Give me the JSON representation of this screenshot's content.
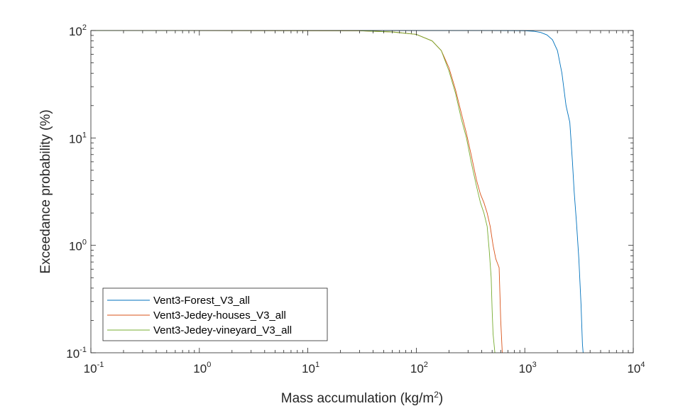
{
  "chart_data": {
    "type": "line",
    "title": "",
    "xlabel": {
      "main": "Mass accumulation (kg/m",
      "sup": "2",
      "end": ")"
    },
    "ylabel": "Exceedance probability (%)",
    "xscale": "log",
    "yscale": "log",
    "xlim": [
      0.1,
      10000
    ],
    "ylim": [
      0.1,
      100
    ],
    "grid": false,
    "legend_position": "bottom-left",
    "x_ticks": [
      {
        "value": 0.1,
        "base": "10",
        "exp": "-1"
      },
      {
        "value": 1,
        "base": "10",
        "exp": "0"
      },
      {
        "value": 10,
        "base": "10",
        "exp": "1"
      },
      {
        "value": 100,
        "base": "10",
        "exp": "2"
      },
      {
        "value": 1000,
        "base": "10",
        "exp": "3"
      },
      {
        "value": 10000,
        "base": "10",
        "exp": "4"
      }
    ],
    "y_ticks": [
      {
        "value": 0.1,
        "base": "10",
        "exp": "-1"
      },
      {
        "value": 1,
        "base": "10",
        "exp": "0"
      },
      {
        "value": 10,
        "base": "10",
        "exp": "1"
      },
      {
        "value": 100,
        "base": "10",
        "exp": "2"
      }
    ],
    "series": [
      {
        "name": "Vent3-Forest_V3_all",
        "color": "#0072BD",
        "x": [
          0.1,
          100,
          500,
          1000,
          1200,
          1400,
          1600,
          1800,
          2000,
          2200,
          2400,
          2600,
          2750,
          2850,
          3000,
          3150,
          3300,
          3400,
          3450
        ],
        "y": [
          100,
          100,
          100,
          99.5,
          98.5,
          96,
          91,
          82,
          65,
          40,
          20,
          14,
          6,
          3.2,
          1.6,
          0.75,
          0.28,
          0.12,
          0.1
        ]
      },
      {
        "name": "Vent3-Jedey-houses_V3_all",
        "color": "#D95319",
        "x": [
          0.1,
          30,
          60,
          100,
          140,
          170,
          200,
          230,
          260,
          290,
          320,
          360,
          390,
          420,
          450,
          480,
          510,
          540,
          560,
          580,
          600,
          620
        ],
        "y": [
          100,
          99.5,
          97,
          92,
          80,
          65,
          45,
          28,
          17,
          11,
          7,
          4,
          3,
          2.5,
          2,
          1.5,
          1.0,
          0.75,
          0.68,
          0.62,
          0.2,
          0.1
        ]
      },
      {
        "name": "Vent3-Jedey-vineyard_V3_all",
        "color": "#77AC30",
        "x": [
          0.1,
          30,
          60,
          100,
          140,
          170,
          200,
          230,
          260,
          290,
          320,
          360,
          390,
          420,
          450,
          470,
          490,
          500,
          510,
          530
        ],
        "y": [
          100,
          99.5,
          97,
          92,
          80,
          65,
          42,
          26,
          15,
          10,
          6,
          3.5,
          2.5,
          2.0,
          1.5,
          0.9,
          0.5,
          0.25,
          0.15,
          0.1
        ]
      }
    ]
  }
}
